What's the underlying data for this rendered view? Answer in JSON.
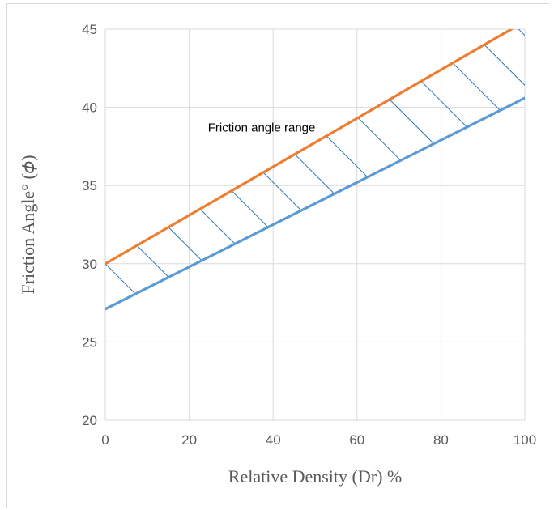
{
  "chart_data": {
    "type": "line",
    "xlabel": "Relative Density (Dr) %",
    "ylabel": "Friction Angle° (𝜙)",
    "xlim": [
      0,
      100
    ],
    "ylim": [
      20,
      45
    ],
    "xticks": [
      0,
      20,
      40,
      60,
      80,
      100
    ],
    "yticks": [
      20,
      25,
      30,
      35,
      40,
      45
    ],
    "grid": true,
    "series": [
      {
        "color": "#ED7D31",
        "x": [
          0,
          100
        ],
        "y": [
          30,
          45.5
        ]
      },
      {
        "color": "#5B9BD5",
        "x": [
          0,
          100
        ],
        "y": [
          27.1,
          40.6
        ]
      }
    ],
    "hatch_color": "#2E75B6",
    "annotation": {
      "text": "Friction angle range",
      "x": 51.5,
      "y": 38.7
    }
  }
}
